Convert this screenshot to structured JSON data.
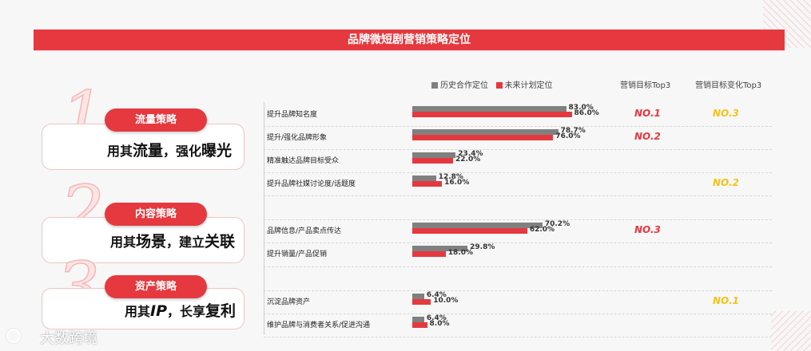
{
  "title": "品牌微短剧营销策略定位",
  "strategies": [
    {
      "num": "1",
      "pill": "流量策略",
      "prefix": "用其",
      "big1": "流量",
      "mid": "，强化",
      "big2": "曝光"
    },
    {
      "num": "2",
      "pill": "内容策略",
      "prefix": "用其",
      "big1": "场景",
      "mid": "，建立",
      "big2": "关联"
    },
    {
      "num": "3",
      "pill": "资产策略",
      "prefix": "用其",
      "big1": "IP",
      "mid": "，长享",
      "big2": "复利"
    }
  ],
  "headers": {
    "goal_top3": "营销目标Top3",
    "change_top3": "营销目标变化Top3"
  },
  "colors": {
    "history": "#808080",
    "future": "#e5393f",
    "rank_goal": "#e5393f",
    "rank_change": "#f5c21b"
  },
  "chart_data": {
    "type": "bar",
    "orientation": "horizontal",
    "categories": [
      "提升品牌知名度",
      "提升/强化品牌形象",
      "精准触达品牌目标受众",
      "提升品牌社媒讨论度/话题度",
      "品牌信息/产品卖点传达",
      "提升销量/产品促销",
      "沉淀品牌资产",
      "维护品牌与消费者关系/促进沟通"
    ],
    "series": [
      {
        "name": "历史合作定位",
        "values": [
          83.0,
          78.7,
          23.4,
          12.8,
          70.2,
          29.8,
          6.4,
          6.4
        ],
        "labels": [
          "83.0%",
          "78.7%",
          "23.4%",
          "12.8%",
          "70.2%",
          "29.8%",
          "6.4%",
          "6.4%"
        ]
      },
      {
        "name": "未来计划定位",
        "values": [
          86.0,
          76.0,
          22.0,
          16.0,
          62.0,
          18.0,
          10.0,
          8.0
        ],
        "labels": [
          "86.0%",
          "76.0%",
          "22.0%",
          "16.0%",
          "62.0%",
          "18.0%",
          "10.0%",
          "8.0%"
        ]
      }
    ],
    "goal_rank": [
      "NO.1",
      "NO.2",
      "",
      "",
      "NO.3",
      "",
      "",
      ""
    ],
    "change_rank": [
      "NO.3",
      "",
      "",
      "NO.2",
      "",
      "",
      "NO.1",
      ""
    ],
    "xlim": [
      0,
      100
    ]
  },
  "watermark": "大数跨境"
}
